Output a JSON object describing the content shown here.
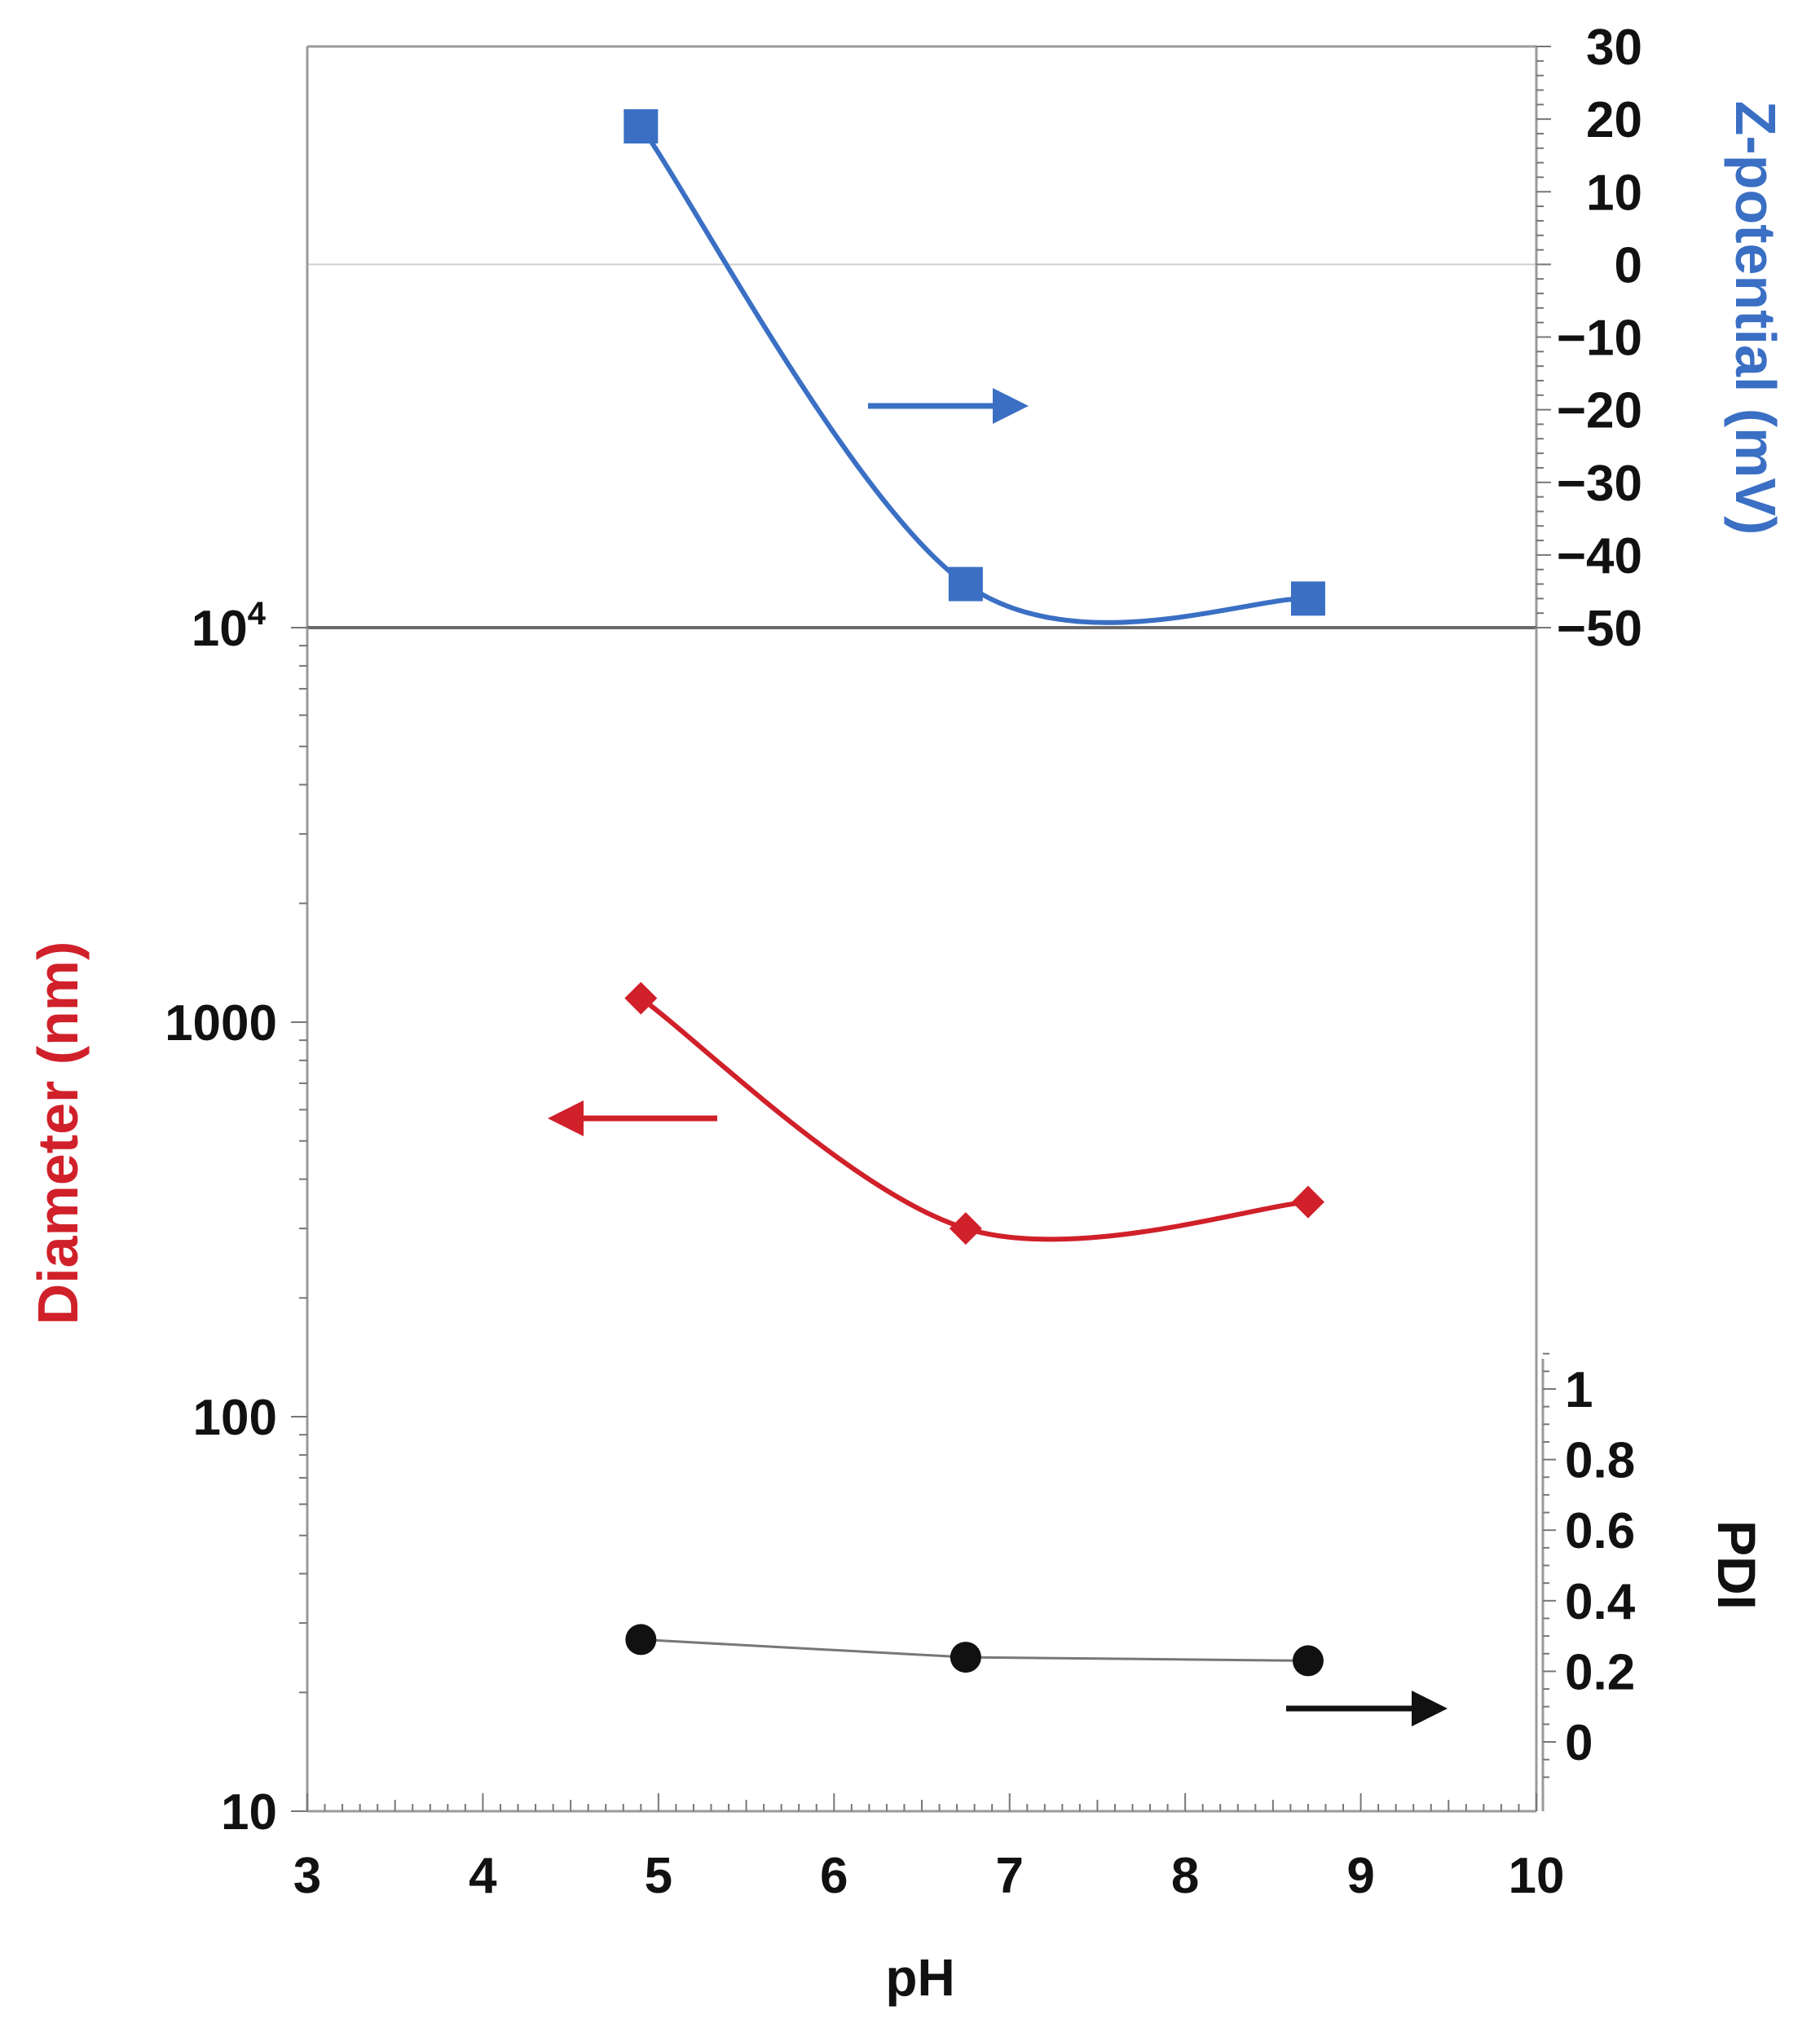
{
  "chart_data": [
    {
      "type": "line",
      "panel": "top",
      "x_axis": {
        "label": "pH",
        "range": [
          3,
          10
        ],
        "ticks": [
          "3",
          "4",
          "5",
          "6",
          "7",
          "8",
          "9",
          "10"
        ]
      },
      "y_axis_right": {
        "label": "Z-potential (mV)",
        "range": [
          -50,
          30
        ],
        "ticks": [
          "30",
          "20",
          "10",
          "0",
          "−10",
          "−20",
          "−30",
          "−40",
          "−50"
        ],
        "color": "#3a6fc4"
      },
      "zero_line": true,
      "series": [
        {
          "marker": "square",
          "color": "#3a6fc4",
          "x": [
            4.9,
            6.75,
            8.7
          ],
          "y": [
            19,
            -44,
            -46
          ]
        }
      ],
      "arrow": {
        "direction": "right",
        "color": "#3a6fc4"
      }
    },
    {
      "type": "line",
      "panel": "bottom",
      "x_axis": {
        "label": "pH",
        "range": [
          3,
          10
        ],
        "ticks": [
          "3",
          "4",
          "5",
          "6",
          "7",
          "8",
          "9",
          "10"
        ]
      },
      "y_axis_left": {
        "label": "Diameter (nm)",
        "scale": "log",
        "range": [
          10,
          10000
        ],
        "ticks": [
          "10",
          "100",
          "1000"
        ],
        "top_tick_base": "10",
        "top_tick_exp": "4",
        "color": "#d0202a"
      },
      "y_axis_right": {
        "label": "PDI",
        "range": [
          0,
          1
        ],
        "ticks": [
          "1",
          "0.8",
          "0.6",
          "0.4",
          "0.2",
          "0"
        ],
        "color": "#111111"
      },
      "series": [
        {
          "axis": "left",
          "marker": "diamond",
          "color": "#d0202a",
          "x": [
            4.9,
            6.75,
            8.7
          ],
          "y": [
            1150,
            300,
            350
          ]
        },
        {
          "axis": "right",
          "marker": "circle",
          "color": "#111111",
          "x": [
            4.9,
            6.75,
            8.7
          ],
          "y": [
            0.29,
            0.24,
            0.23
          ]
        }
      ],
      "arrows": [
        {
          "direction": "left",
          "color": "#d0202a"
        },
        {
          "direction": "right",
          "color": "#111111"
        }
      ]
    }
  ]
}
